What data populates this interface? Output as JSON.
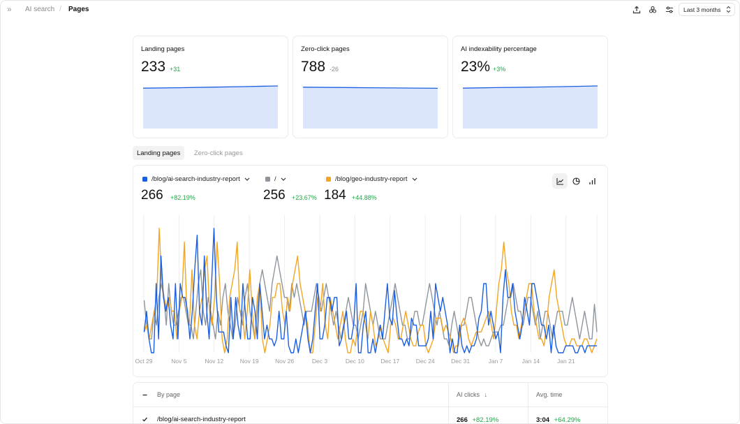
{
  "breadcrumb": {
    "parent": "AI search",
    "current": "Pages"
  },
  "date_range": {
    "selected": "Last 3 months"
  },
  "metrics": [
    {
      "title": "Landing pages",
      "value": "233",
      "delta": "+31",
      "trend": [
        0.2,
        0.35,
        0.55,
        0.75,
        1.0
      ]
    },
    {
      "title": "Zero-click pages",
      "value": "788",
      "delta": "-26",
      "trend": [
        0.55,
        0.45,
        0.35,
        0.25,
        0.15
      ]
    },
    {
      "title": "AI indexability percentage",
      "value": "23%",
      "delta": "+3%",
      "trend": [
        0.2,
        0.4,
        0.55,
        0.75,
        1.0
      ]
    }
  ],
  "tabs": [
    {
      "label": "Landing pages",
      "active": true
    },
    {
      "label": "Zero-click pages",
      "active": false
    }
  ],
  "series": [
    {
      "name": "/blog/ai-search-industry-report",
      "value": "266",
      "delta": "+82.19%",
      "color": "#1b5fe0"
    },
    {
      "name": "/",
      "value": "256",
      "delta": "+23.67%",
      "color": "#8e959d"
    },
    {
      "name": "/blog/geo-industry-report",
      "value": "184",
      "delta": "+44.88%",
      "color": "#f2a623"
    }
  ],
  "chart_data": {
    "type": "line",
    "x_tick_labels": [
      "Oct 29",
      "Nov 5",
      "Nov 12",
      "Nov 19",
      "Nov 26",
      "Dec 3",
      "Dec 10",
      "Dec 17",
      "Dec 24",
      "Dec 31",
      "Jan 7",
      "Jan 14",
      "Jan 21"
    ],
    "ylim": [
      0,
      10
    ],
    "series": [
      {
        "name": "/blog/ai-search-industry-report",
        "values": [
          1.5,
          3,
          1,
          0,
          0,
          5,
          1,
          7,
          4,
          3,
          4,
          2,
          1,
          5,
          1,
          5,
          4,
          4,
          3,
          1,
          3,
          6,
          8.5,
          3,
          2,
          7,
          3,
          1,
          5,
          9,
          4,
          1.5,
          1.5,
          1.5,
          0.5,
          0,
          4,
          1,
          4,
          2,
          1,
          5,
          3,
          1,
          1,
          4,
          3,
          1,
          5,
          3,
          1,
          2,
          1,
          1,
          0.5,
          1,
          3,
          1,
          1,
          3,
          0.5,
          0,
          0,
          1,
          0,
          1,
          2,
          3,
          1,
          0,
          1,
          3,
          5,
          1,
          1,
          2,
          4,
          4,
          3,
          4,
          4,
          0.5,
          1,
          2,
          3,
          1,
          1,
          2,
          5,
          0,
          0,
          2,
          3,
          0,
          0,
          1,
          0,
          1,
          2,
          1,
          3,
          5,
          2.5,
          2,
          4.5,
          2.5,
          1,
          1,
          0.5,
          1,
          0.5,
          2.5,
          2,
          2,
          0.5,
          0.5,
          0.5,
          0.5,
          1,
          3,
          1,
          5,
          4,
          3,
          4,
          3,
          2,
          0,
          1,
          0,
          0,
          2,
          0.5,
          0,
          0.5,
          0,
          0.5,
          0.5,
          1,
          2.5,
          3,
          5,
          5,
          2,
          3,
          2,
          1,
          1.5,
          0,
          4,
          6,
          4,
          4,
          5,
          3,
          2,
          1,
          2,
          4,
          3,
          2,
          5,
          5,
          4,
          3,
          2,
          2,
          1,
          2,
          0,
          2,
          0.5,
          0,
          0,
          0,
          0.5,
          0.5,
          0.5,
          0.5,
          0,
          0,
          0.5,
          0.5,
          0,
          0.5,
          0.5,
          0.5,
          0.5,
          0.5
        ]
      },
      {
        "name": "/",
        "values": [
          3.8,
          2,
          1,
          1,
          3,
          2,
          4,
          5,
          4,
          2,
          5,
          3,
          2,
          2,
          3,
          4,
          4,
          3,
          2,
          2,
          1,
          3,
          5,
          6,
          3,
          2,
          4,
          3,
          2,
          1,
          3,
          2,
          4,
          5,
          3,
          2,
          1,
          2,
          4,
          3,
          2,
          4,
          5,
          3,
          2,
          1,
          3,
          5,
          6,
          5,
          4,
          3,
          5,
          6,
          7,
          6,
          5,
          4,
          4,
          3,
          5,
          4,
          5,
          4,
          3,
          2,
          3,
          3,
          3,
          4,
          5,
          4,
          3,
          4,
          5,
          4,
          3,
          2,
          3,
          2,
          1,
          2,
          3,
          4,
          3,
          2,
          2,
          1,
          2,
          3,
          5,
          4,
          3,
          2,
          3,
          2,
          1,
          1,
          1,
          2,
          3,
          4,
          5,
          4,
          3,
          2,
          2,
          1,
          1,
          2,
          3,
          3,
          2,
          2,
          3,
          4,
          5,
          4,
          3,
          2,
          3,
          2,
          1,
          1,
          0.5,
          2,
          3,
          2,
          1,
          2,
          2,
          3,
          4,
          4,
          3,
          2,
          1,
          0.5,
          1,
          0.5,
          0.5,
          1,
          1.5,
          1.5,
          1.5,
          2,
          2,
          3,
          4,
          4,
          5,
          4,
          3,
          3,
          2,
          3,
          4,
          4,
          3,
          2,
          3,
          1,
          2,
          3,
          3,
          2,
          1,
          2,
          3,
          3,
          3,
          2,
          2,
          3,
          4,
          3,
          2,
          1,
          2,
          3,
          2,
          1,
          1,
          3.5,
          1.5
        ]
      },
      {
        "name": "/blog/geo-industry-report",
        "values": [
          1.5,
          2,
          1,
          2,
          3,
          4,
          9,
          5,
          4,
          3,
          4,
          3,
          3,
          1,
          3,
          4,
          8,
          3,
          2,
          6,
          2,
          1,
          3,
          4,
          6,
          7,
          3,
          2,
          4,
          8,
          5,
          1,
          0,
          1,
          4,
          5,
          6,
          8,
          3,
          3,
          1,
          3,
          6,
          3,
          1,
          4,
          5,
          1,
          0,
          1,
          2,
          4,
          4,
          5,
          5,
          3,
          2,
          4,
          3,
          5,
          6,
          7,
          5,
          4,
          3,
          2,
          0,
          0,
          2,
          4,
          3,
          5,
          2,
          1,
          4,
          3,
          2,
          1,
          2,
          3,
          1,
          0,
          0,
          1,
          0.5,
          2,
          3,
          3,
          2,
          1,
          3,
          2,
          0.5,
          1,
          2,
          1,
          0.5,
          0,
          2,
          2.5,
          2,
          1,
          1,
          2,
          3,
          2,
          1,
          0.5,
          0.5,
          1.5,
          2,
          2,
          0.5,
          0,
          0.5,
          1,
          2.5,
          2.5,
          2.5,
          1.5,
          2,
          1.5,
          1,
          0,
          0.5,
          0.5,
          2,
          2.5,
          2,
          1,
          0.5,
          1,
          1.5,
          1.5,
          1.5,
          2,
          2.5,
          3,
          2,
          1,
          3,
          5,
          6,
          8,
          6,
          5,
          3,
          2,
          2,
          1,
          2,
          3,
          4,
          5,
          5,
          3,
          2,
          1,
          1,
          0.5,
          2,
          4,
          5,
          6,
          4,
          3,
          2,
          1,
          0.5,
          0.5,
          1,
          1,
          0.5,
          0.5,
          0.5,
          1,
          1,
          0.5,
          0,
          0.5,
          1
        ]
      }
    ]
  },
  "table": {
    "columns": [
      "By page",
      "AI clicks",
      "Avg. time"
    ],
    "rows": [
      {
        "page": "/blog/ai-search-industry-report",
        "ai_clicks": "266",
        "ai_clicks_delta": "+82.19%",
        "avg_time": "3:04",
        "avg_time_delta": "+64.29%"
      }
    ]
  }
}
